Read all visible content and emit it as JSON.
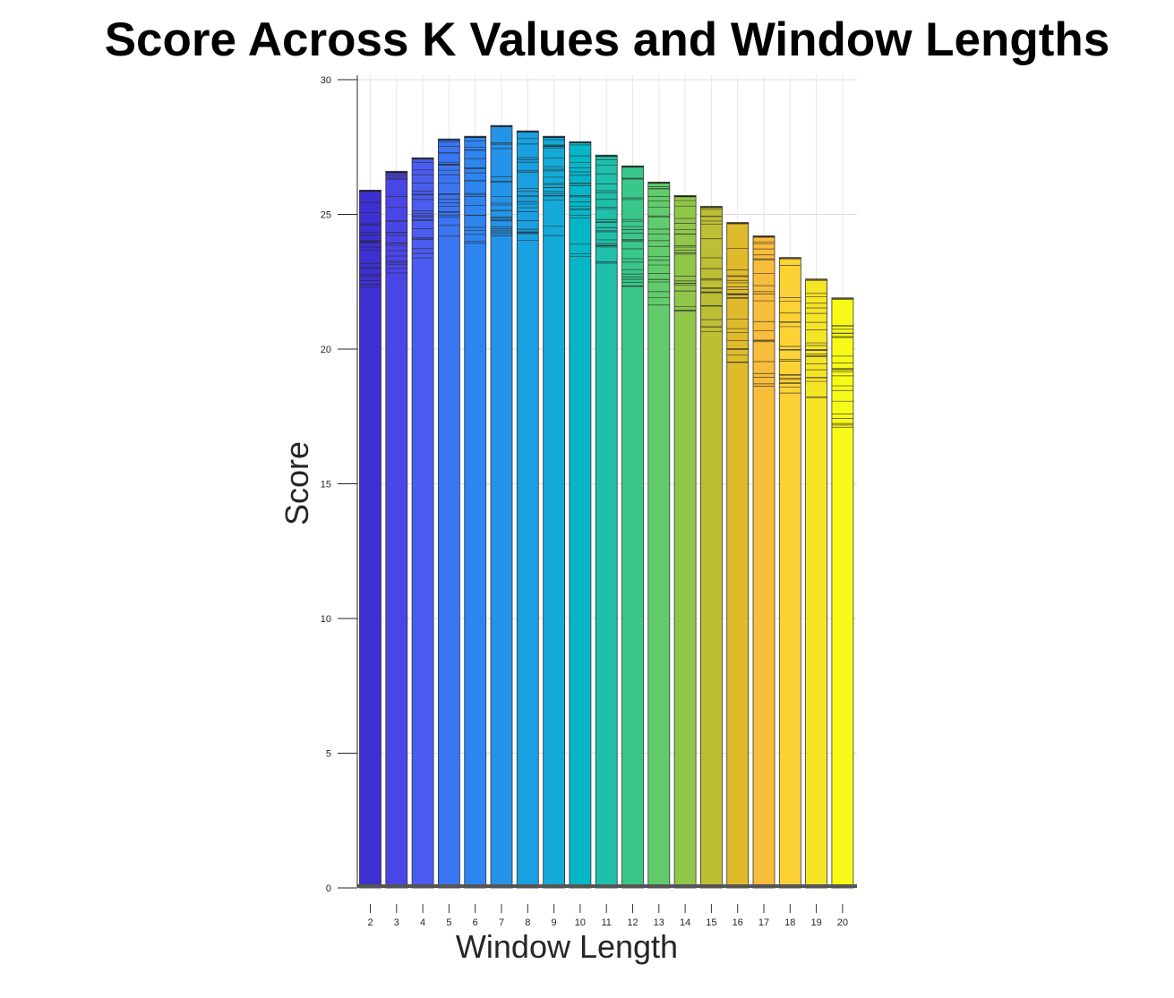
{
  "chart_data": {
    "type": "bar",
    "title": "Score Across K Values and Window Lengths",
    "xlabel": "Window Length",
    "ylabel": "Score",
    "categories": [
      "2",
      "3",
      "4",
      "5",
      "6",
      "7",
      "8",
      "9",
      "10",
      "11",
      "12",
      "13",
      "14",
      "15",
      "16",
      "17",
      "18",
      "19",
      "20"
    ],
    "values": [
      25.9,
      26.6,
      27.1,
      27.8,
      27.9,
      28.3,
      28.1,
      27.9,
      27.7,
      27.2,
      26.8,
      26.2,
      25.7,
      25.3,
      24.7,
      24.2,
      23.4,
      22.6,
      21.9
    ],
    "band_min": [
      22.1,
      22.5,
      23.2,
      24.1,
      23.9,
      24.2,
      24.0,
      24.1,
      23.2,
      23.1,
      22.2,
      21.5,
      20.8,
      20.4,
      19.5,
      18.6,
      18.3,
      17.7,
      17.1
    ],
    "ylim": [
      0,
      30
    ],
    "yticks": [
      0,
      5,
      10,
      15,
      20,
      25,
      30
    ],
    "grid": true,
    "colors": [
      "#3d2fd1",
      "#4a46e6",
      "#4a5df0",
      "#3a75f2",
      "#2e85f0",
      "#2593e8",
      "#1aa0e0",
      "#13aad8",
      "#05b6c6",
      "#1fc0aa",
      "#3ac78a",
      "#62cc6c",
      "#90c74a",
      "#bcbf33",
      "#dfbb2c",
      "#f7bd3b",
      "#fcd234",
      "#f6e427",
      "#f7fa16"
    ]
  }
}
